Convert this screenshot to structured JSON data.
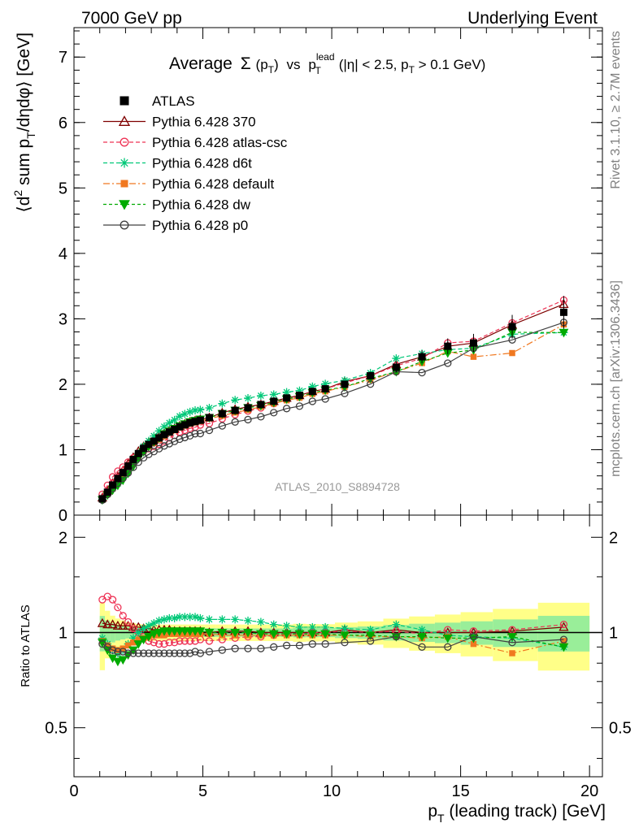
{
  "header": {
    "left": "7000 GeV pp",
    "right": "Underlying Event"
  },
  "side_labels": {
    "rivet": "Rivet 3.1.10, ≥ 2.7M events",
    "mcplots": "mcplots.cern.ch [arXiv:1306.3436]"
  },
  "chart_data": {
    "type": "line",
    "title": {
      "prefix": "Average",
      "sigma": "Σ",
      "pt": "p",
      "pt_sub": "T",
      "vs": "vs",
      "lead": "p",
      "lead_sup": "lead",
      "lead_sub": "T",
      "cut_open": "(|η| < 2.5, p",
      "cut_sub": "T",
      "cut_close": " > 0.1 GeV)"
    },
    "analysis_label": "ATLAS_2010_S8894728",
    "xlabel": {
      "p": "p",
      "sub": "T",
      "rest": " (leading track) [GeV]"
    },
    "ylabel": {
      "open": "⟨d",
      "sup": "2",
      "mid": " sum p",
      "sub": "T",
      "rest": "/dηdφ⟩ [GeV]"
    },
    "ratio_ylabel": "Ratio to ATLAS",
    "xlim": [
      0,
      20.5
    ],
    "ylim": [
      0,
      7.45
    ],
    "ratio_ylim": [
      0.35,
      2.35
    ],
    "x_ticks": [
      0,
      5,
      10,
      15,
      20
    ],
    "x_tick_labels": [
      "0",
      "5",
      "10",
      "15",
      "20"
    ],
    "y_ticks": [
      0,
      1,
      2,
      3,
      4,
      5,
      6,
      7
    ],
    "y_tick_labels": [
      "0",
      "1",
      "2",
      "3",
      "4",
      "5",
      "6",
      "7"
    ],
    "ratio_ticks": [
      0.5,
      1,
      2
    ],
    "ratio_tick_labels": [
      "0.5",
      "1",
      "2"
    ],
    "legend_position": "top-left",
    "x": [
      1.1,
      1.3,
      1.5,
      1.7,
      1.9,
      2.1,
      2.3,
      2.5,
      2.7,
      2.9,
      3.1,
      3.3,
      3.5,
      3.7,
      3.9,
      4.1,
      4.3,
      4.5,
      4.7,
      4.9,
      5.25,
      5.75,
      6.25,
      6.75,
      7.25,
      7.75,
      8.25,
      8.75,
      9.25,
      9.75,
      10.5,
      11.5,
      12.5,
      13.5,
      14.5,
      15.5,
      17.0,
      19.0
    ],
    "data": {
      "name": "ATLAS",
      "color": "#000000",
      "y": [
        0.25,
        0.35,
        0.46,
        0.56,
        0.65,
        0.75,
        0.85,
        0.94,
        1.02,
        1.08,
        1.13,
        1.18,
        1.23,
        1.27,
        1.31,
        1.35,
        1.38,
        1.41,
        1.43,
        1.45,
        1.49,
        1.55,
        1.6,
        1.64,
        1.69,
        1.74,
        1.79,
        1.83,
        1.89,
        1.93,
        2.0,
        2.13,
        2.26,
        2.42,
        2.58,
        2.63,
        2.88,
        3.1
      ],
      "err": [
        0.02,
        0.02,
        0.02,
        0.02,
        0.02,
        0.02,
        0.02,
        0.02,
        0.02,
        0.02,
        0.02,
        0.02,
        0.02,
        0.02,
        0.02,
        0.02,
        0.02,
        0.02,
        0.02,
        0.02,
        0.03,
        0.03,
        0.03,
        0.03,
        0.03,
        0.03,
        0.03,
        0.04,
        0.04,
        0.04,
        0.05,
        0.06,
        0.08,
        0.1,
        0.12,
        0.14,
        0.18,
        0.25
      ]
    },
    "series": [
      {
        "name": "Pythia 6.428 370",
        "color": "#7f0000",
        "dash": "",
        "marker": "triangle-open",
        "ratio": [
          1.07,
          1.06,
          1.06,
          1.05,
          1.05,
          1.05,
          1.04,
          1.04,
          1.03,
          1.03,
          1.02,
          1.02,
          1.02,
          1.02,
          1.01,
          1.01,
          1.01,
          1.01,
          1.01,
          1.01,
          1.0,
          1.01,
          1.01,
          1.01,
          1.0,
          1.0,
          1.0,
          1.0,
          1.0,
          1.0,
          1.02,
          1.0,
          1.02,
          1.0,
          1.0,
          1.0,
          1.01,
          1.04
        ]
      },
      {
        "name": "Pythia 6.428 atlas-csc",
        "color": "#ee3355",
        "dash": "5,3",
        "marker": "circle-open",
        "ratio": [
          1.27,
          1.3,
          1.27,
          1.2,
          1.13,
          1.08,
          1.03,
          1.0,
          0.97,
          0.94,
          0.93,
          0.92,
          0.92,
          0.93,
          0.93,
          0.94,
          0.94,
          0.94,
          0.94,
          0.95,
          0.94,
          0.95,
          0.96,
          0.97,
          0.97,
          0.98,
          0.99,
          0.99,
          1.0,
          1.0,
          1.01,
          1.0,
          1.01,
          0.99,
          1.02,
          1.01,
          1.02,
          1.06
        ]
      },
      {
        "name": "Pythia 6.428 d6t",
        "color": "#00c878",
        "dash": "5,3",
        "marker": "star",
        "ratio": [
          0.96,
          0.92,
          0.88,
          0.86,
          0.88,
          0.92,
          0.96,
          1.0,
          1.03,
          1.05,
          1.07,
          1.09,
          1.1,
          1.11,
          1.11,
          1.12,
          1.12,
          1.12,
          1.12,
          1.11,
          1.1,
          1.1,
          1.1,
          1.09,
          1.08,
          1.06,
          1.05,
          1.04,
          1.04,
          1.04,
          1.03,
          1.02,
          1.06,
          1.02,
          0.98,
          0.97,
          0.96,
          0.9
        ]
      },
      {
        "name": "Pythia 6.428 default",
        "color": "#f07820",
        "dash": "8,3,2,3",
        "marker": "square-filled",
        "ratio": [
          0.94,
          0.91,
          0.89,
          0.88,
          0.89,
          0.91,
          0.93,
          0.95,
          0.96,
          0.97,
          0.98,
          0.98,
          0.98,
          0.99,
          0.99,
          0.99,
          0.99,
          0.99,
          0.99,
          0.99,
          0.99,
          0.98,
          0.98,
          0.98,
          0.98,
          0.98,
          0.98,
          0.98,
          0.98,
          0.98,
          0.98,
          0.97,
          0.97,
          0.96,
          0.97,
          0.92,
          0.86,
          0.94
        ]
      },
      {
        "name": "Pythia 6.428 dw",
        "color": "#00aa00",
        "dash": "4,3",
        "marker": "triangle-down",
        "ratio": [
          0.93,
          0.88,
          0.83,
          0.81,
          0.82,
          0.85,
          0.88,
          0.92,
          0.95,
          0.97,
          0.99,
          1.0,
          1.01,
          1.01,
          1.01,
          1.01,
          1.01,
          1.01,
          1.01,
          1.01,
          1.0,
          1.0,
          1.0,
          1.0,
          0.99,
          0.99,
          0.99,
          0.99,
          0.99,
          0.99,
          0.98,
          0.98,
          0.97,
          0.97,
          0.96,
          0.96,
          0.97,
          0.9
        ]
      },
      {
        "name": "Pythia 6.428 p0",
        "color": "#404040",
        "dash": "",
        "marker": "circle-open",
        "ratio": [
          0.92,
          0.9,
          0.88,
          0.87,
          0.87,
          0.86,
          0.86,
          0.86,
          0.86,
          0.86,
          0.86,
          0.86,
          0.86,
          0.86,
          0.86,
          0.86,
          0.86,
          0.86,
          0.87,
          0.86,
          0.87,
          0.88,
          0.89,
          0.89,
          0.89,
          0.9,
          0.91,
          0.91,
          0.92,
          0.92,
          0.93,
          0.94,
          0.97,
          0.9,
          0.9,
          0.97,
          0.93,
          0.95
        ]
      }
    ]
  }
}
